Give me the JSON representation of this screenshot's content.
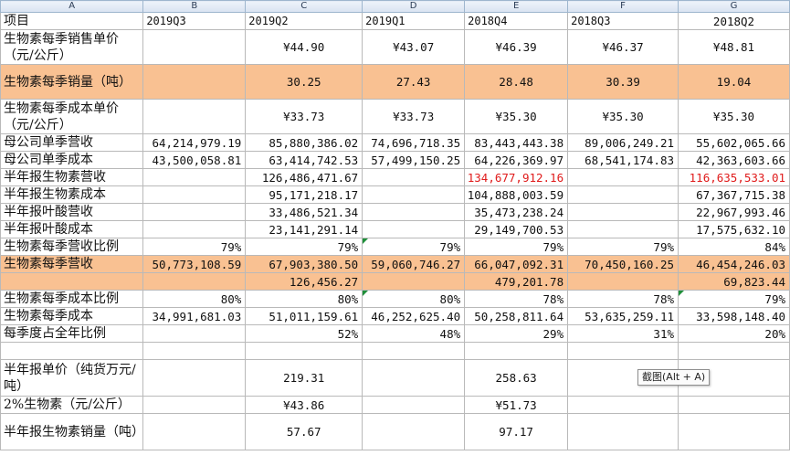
{
  "columns": [
    "A",
    "B",
    "C",
    "D",
    "E",
    "F",
    "G"
  ],
  "header_row": [
    "项目",
    "2019Q3",
    "2019Q2",
    "2019Q1",
    "2018Q4",
    "2018Q3",
    "2018Q2"
  ],
  "rows": [
    {
      "label": "生物素每季销售单价（元/公斤）",
      "B": "",
      "C": "¥44.90",
      "D": "¥43.07",
      "E": "¥46.39",
      "F": "¥46.37",
      "G": "¥48.81"
    },
    {
      "label": "生物素每季销量（吨）",
      "B": "",
      "C": "30.25",
      "D": "27.43",
      "E": "28.48",
      "F": "30.39",
      "G": "19.04"
    },
    {
      "label": "生物素每季成本单价（元/公斤）",
      "B": "",
      "C": "¥33.73",
      "D": "¥33.73",
      "E": "¥35.30",
      "F": "¥35.30",
      "G": "¥35.30"
    },
    {
      "label": "母公司单季营收",
      "B": "64,214,979.19",
      "C": "85,880,386.02",
      "D": "74,696,718.35",
      "E": "83,443,443.38",
      "F": "89,006,249.21",
      "G": "55,602,065.66"
    },
    {
      "label": "母公司单季成本",
      "B": "43,500,058.81",
      "C": "63,414,742.53",
      "D": "57,499,150.25",
      "E": "64,226,369.97",
      "F": "68,541,174.83",
      "G": "42,363,603.66"
    },
    {
      "label": "半年报生物素营收",
      "B": "",
      "C": "126,486,471.67",
      "D": "",
      "E": "134,677,912.16",
      "F": "",
      "G": "116,635,533.01"
    },
    {
      "label": "半年报生物素成本",
      "B": "",
      "C": "95,171,218.17",
      "D": "",
      "E": "104,888,003.59",
      "F": "",
      "G": "67,367,715.38"
    },
    {
      "label": "半年报叶酸营收",
      "B": "",
      "C": "33,486,521.34",
      "D": "",
      "E": "35,473,238.24",
      "F": "",
      "G": "22,967,993.46"
    },
    {
      "label": "半年报叶酸成本",
      "B": "",
      "C": "23,141,291.14",
      "D": "",
      "E": "29,149,700.53",
      "F": "",
      "G": "17,575,632.10"
    },
    {
      "label": "生物素每季营收比例",
      "B": "79%",
      "C": "79%",
      "D": "79%",
      "E": "79%",
      "F": "79%",
      "G": "84%"
    },
    {
      "label": "生物素每季营收",
      "B": "50,773,108.59",
      "C": "67,903,380.50",
      "D": "59,060,746.27",
      "E": "66,047,092.31",
      "F": "70,450,160.25",
      "G": "46,454,246.03"
    },
    {
      "label": "",
      "B": "",
      "C": "126,456.27",
      "D": "",
      "E": "479,201.78",
      "F": "",
      "G": "69,823.44"
    },
    {
      "label": "生物素每季成本比例",
      "B": "80%",
      "C": "80%",
      "D": "80%",
      "E": "78%",
      "F": "78%",
      "G": "79%"
    },
    {
      "label": "生物素每季成本",
      "B": "34,991,681.03",
      "C": "51,011,159.61",
      "D": "46,252,625.40",
      "E": "50,258,811.64",
      "F": "53,635,259.11",
      "G": "33,598,148.40"
    },
    {
      "label": "每季度占全年比例",
      "B": "",
      "C": "52%",
      "D": "48%",
      "E": "29%",
      "F": "31%",
      "G": "20%"
    },
    {
      "label": "",
      "B": "",
      "C": "",
      "D": "",
      "E": "",
      "F": "",
      "G": ""
    },
    {
      "label": "半年报单价（纯货万元/吨）",
      "B": "",
      "C": "219.31",
      "D": "",
      "E": "258.63",
      "F": "",
      "G": ""
    },
    {
      "label": "2%生物素（元/公斤）",
      "B": "",
      "C": "¥43.86",
      "D": "",
      "E": "¥51.73",
      "F": "",
      "G": ""
    },
    {
      "label": "半年报生物素销量（吨）",
      "B": "",
      "C": "57.67",
      "D": "",
      "E": "97.17",
      "F": "",
      "G": ""
    }
  ],
  "tooltip": "截图(Alt + A)",
  "colors": {
    "orange_fill": "#f9c192",
    "red_text": "#e01b1b",
    "header_bg": "#dce6f1",
    "triangle": "#1f8f3a"
  }
}
